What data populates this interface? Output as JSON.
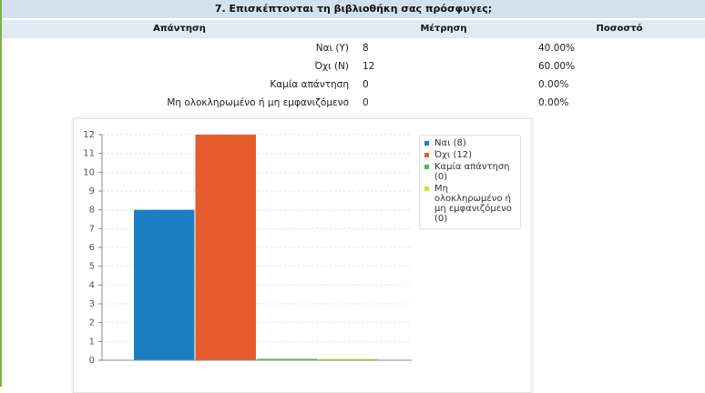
{
  "table": {
    "title": "7. Επισκέπτονται τη βιβλιοθήκη σας πρόσφυγες;",
    "columns": [
      "Απάντηση",
      "Μέτρηση",
      "Ποσοστό"
    ],
    "rows": [
      [
        "Ναι (Y)",
        "8",
        "40.00%"
      ],
      [
        "Όχι (N)",
        "12",
        "60.00%"
      ],
      [
        "Καμία απάντηση",
        "0",
        "0.00%"
      ],
      [
        "Μη ολοκληρωμένο ή μη εμφανιζόμενο",
        "0",
        "0.00%"
      ]
    ]
  },
  "chart_data": {
    "type": "bar",
    "categories": [
      null
    ],
    "series": [
      {
        "name": "Ναι (8)",
        "color": "#1b7fc4",
        "values": [
          8
        ]
      },
      {
        "name": "Όχι (12)",
        "color": "#e65c2c",
        "values": [
          12
        ]
      },
      {
        "name": "Καμία απάντηση (0)",
        "color": "#3cc43c",
        "values": [
          0
        ]
      },
      {
        "name": "Μη ολοκληρωμένο ή μη εμφανιζόμενο (0)",
        "color": "#d4e22a",
        "values": [
          0
        ]
      }
    ],
    "ylim": [
      0,
      12
    ],
    "yticks": [
      0,
      1,
      2,
      3,
      4,
      5,
      6,
      7,
      8,
      9,
      10,
      11,
      12
    ],
    "grid": true,
    "legend": "right"
  }
}
